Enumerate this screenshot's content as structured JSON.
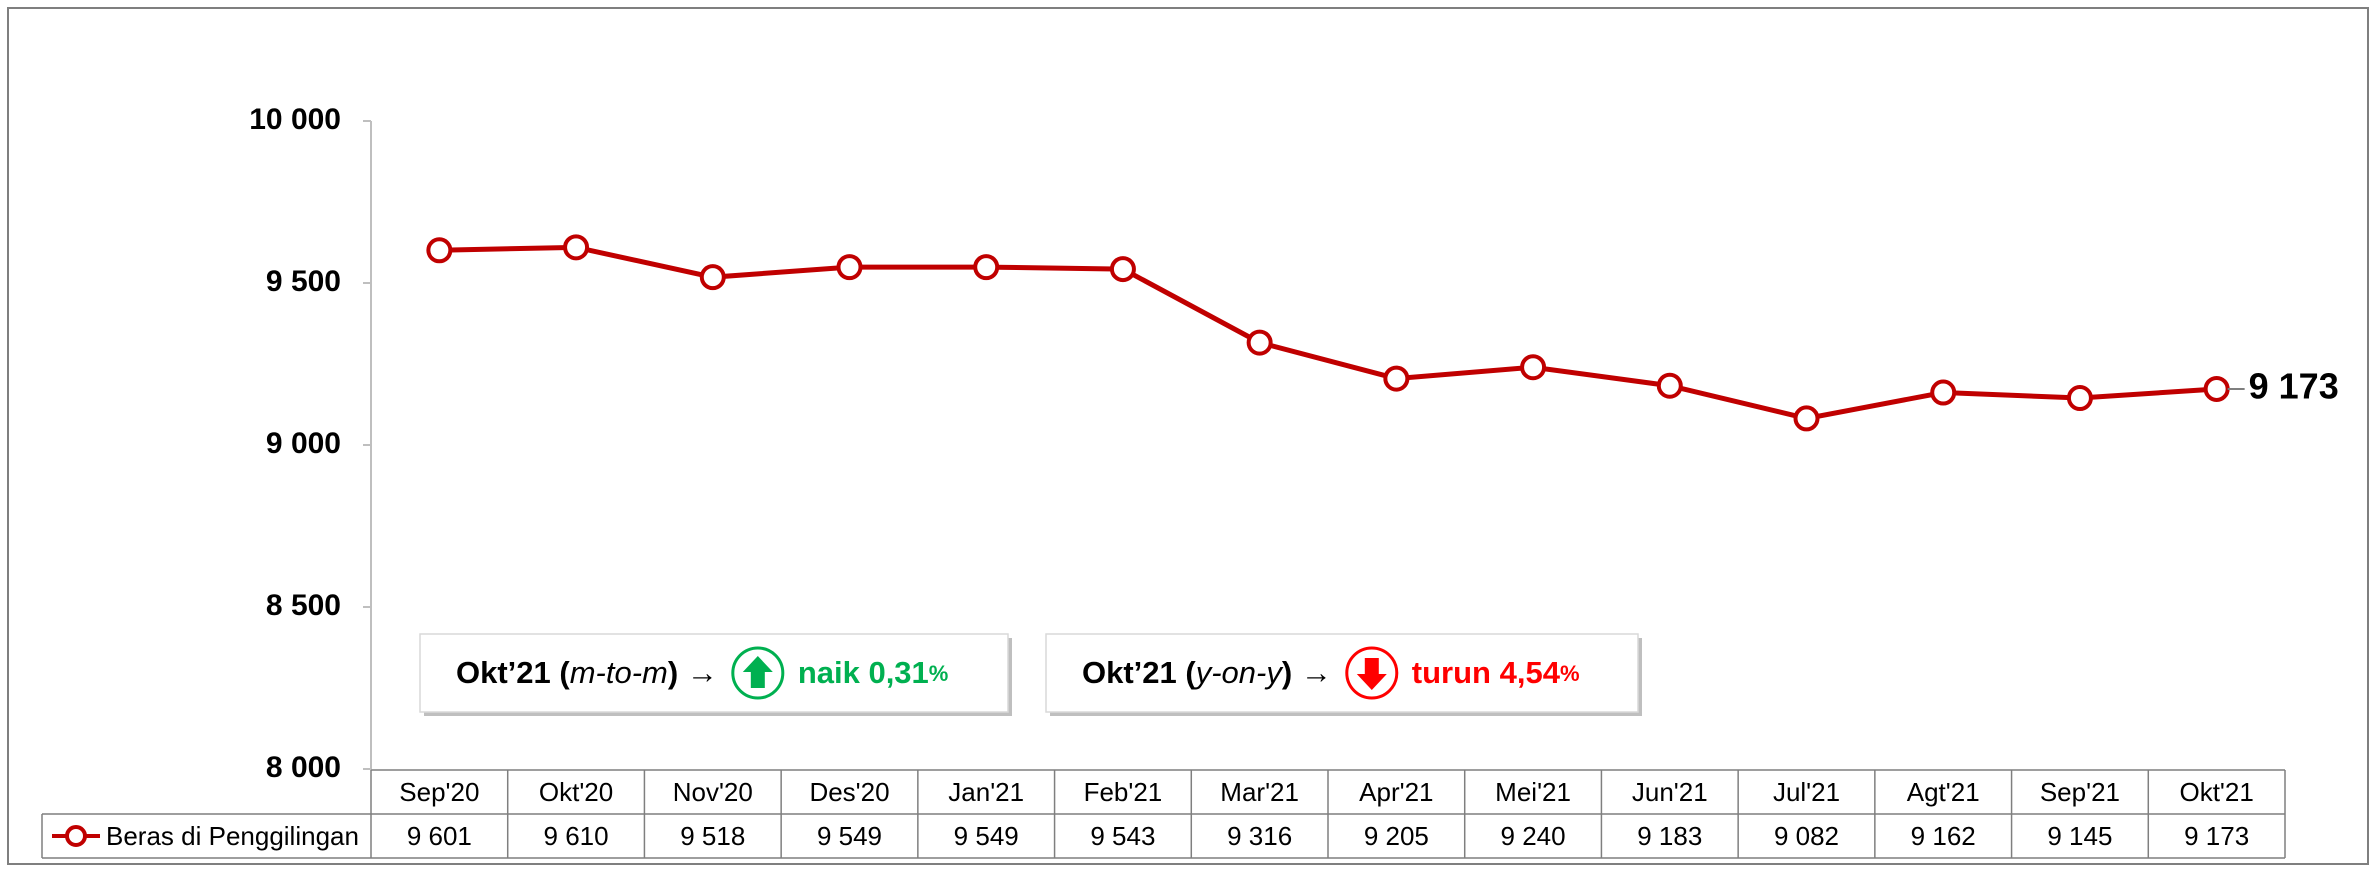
{
  "chart_data": {
    "type": "line",
    "categories": [
      "Sep'20",
      "Okt'20",
      "Nov'20",
      "Des'20",
      "Jan'21",
      "Feb'21",
      "Mar'21",
      "Apr'21",
      "Mei'21",
      "Jun'21",
      "Jul'21",
      "Agt'21",
      "Sep'21",
      "Okt'21"
    ],
    "series": [
      {
        "name": "Beras di Penggilingan",
        "color": "#c00000",
        "values": [
          9601,
          9610,
          9518,
          9549,
          9549,
          9543,
          9316,
          9205,
          9240,
          9183,
          9082,
          9162,
          9145,
          9173
        ],
        "value_labels": [
          "9 601",
          "9 610",
          "9 518",
          "9 549",
          "9 549",
          "9 543",
          "9 316",
          "9 205",
          "9 240",
          "9 183",
          "9 082",
          "9 162",
          "9 145",
          "9 173"
        ]
      }
    ],
    "ylim": [
      8000,
      10000
    ],
    "yticks": [
      {
        "value": 8000,
        "label": "8 000"
      },
      {
        "value": 8500,
        "label": "8 500"
      },
      {
        "value": 9000,
        "label": "9 000"
      },
      {
        "value": 9500,
        "label": "9 500"
      },
      {
        "value": 10000,
        "label": "10 000"
      }
    ],
    "grid": false,
    "annotations": [
      {
        "prefix": "Okt’21 (",
        "term": "m-to-m",
        "suffix": ") →",
        "direction": "up",
        "text": "naik 0,31",
        "unit": "%",
        "color": "#00b050"
      },
      {
        "prefix": "Okt’21 (",
        "term": "y-on-y",
        "suffix": ") →",
        "direction": "down",
        "text": "turun 4,54",
        "unit": "%",
        "color": "#ff0000"
      }
    ]
  }
}
